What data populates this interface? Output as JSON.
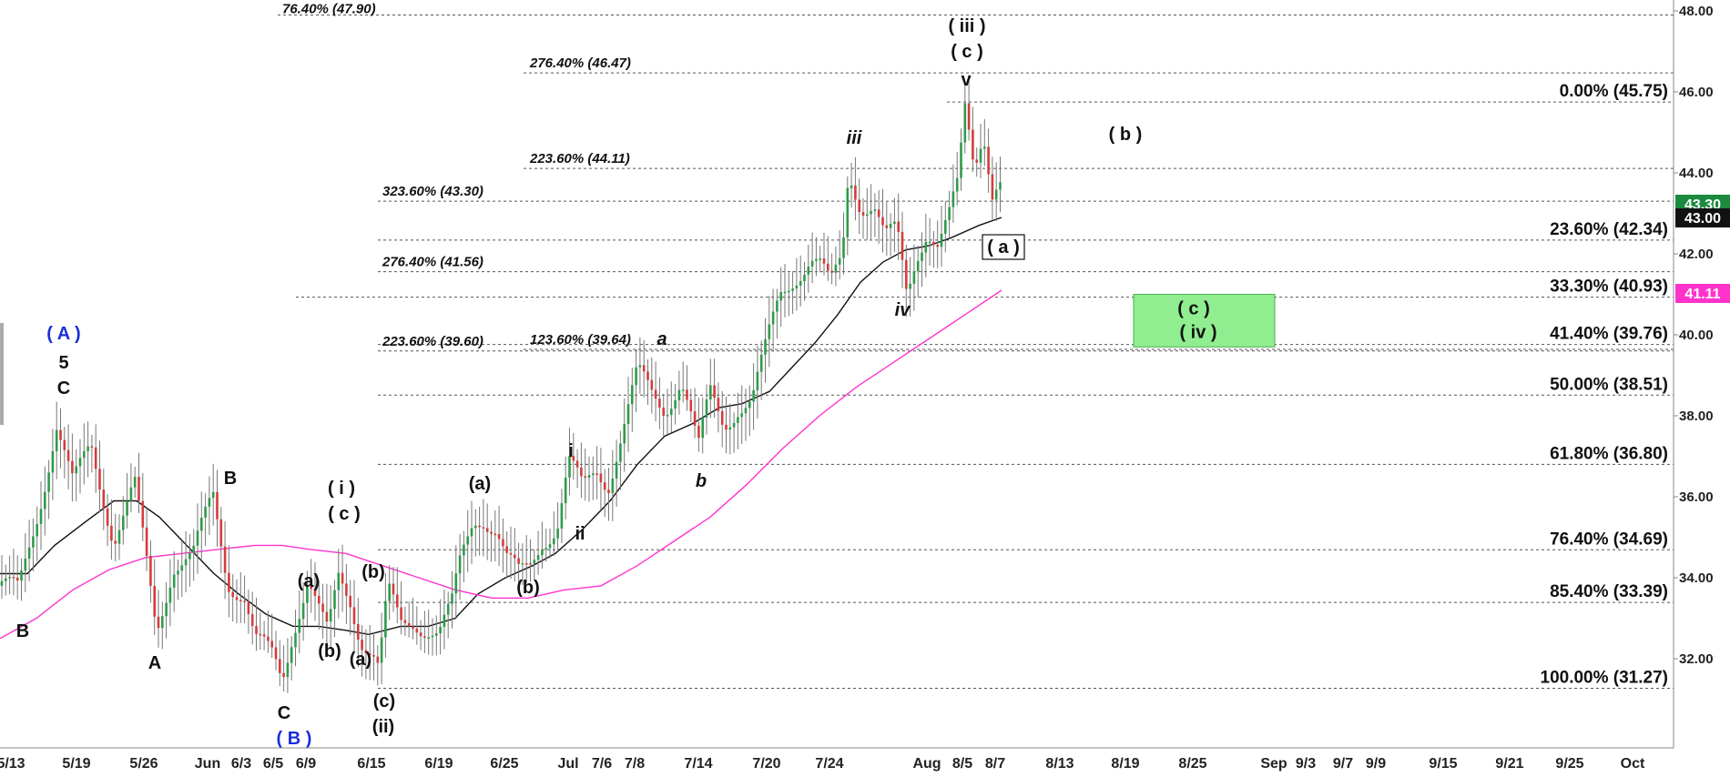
{
  "chart_data": {
    "type": "candlestick",
    "y_ticks": [
      "32.00",
      "34.00",
      "36.00",
      "38.00",
      "40.00",
      "42.00",
      "44.00",
      "46.00",
      "48.00"
    ],
    "ylim": [
      30.0,
      48.3
    ],
    "x_ticks": [
      "5/13",
      "5/19",
      "5/26",
      "Jun",
      "6/3",
      "6/5",
      "6/9",
      "6/15",
      "6/19",
      "6/25",
      "Jul",
      "7/6",
      "7/8",
      "7/14",
      "7/20",
      "7/24",
      "Aug",
      "8/5",
      "8/7",
      "8/13",
      "8/19",
      "8/25",
      "Sep",
      "9/3",
      "9/7",
      "9/9",
      "9/15",
      "9/21",
      "9/25",
      "Oct"
    ],
    "price_badges": [
      {
        "value": "43.30",
        "color": "#1b8a3e"
      },
      {
        "value": "43.00",
        "color": "#111111"
      },
      {
        "value": "41.11",
        "color": "#ff33cc"
      }
    ],
    "fib_right": [
      {
        "label": "0.00% (45.75)",
        "value": 45.75
      },
      {
        "label": "23.60% (42.34)",
        "value": 42.34
      },
      {
        "label": "33.30% (40.93)",
        "value": 40.93
      },
      {
        "label": "41.40% (39.76)",
        "value": 39.76
      },
      {
        "label": "50.00% (38.51)",
        "value": 38.51
      },
      {
        "label": "61.80% (36.80)",
        "value": 36.8
      },
      {
        "label": "76.40% (34.69)",
        "value": 34.69
      },
      {
        "label": "85.40% (33.39)",
        "value": 33.39
      },
      {
        "label": "100.00% (31.27)",
        "value": 31.27
      }
    ],
    "fib_left": [
      {
        "label": "76.40% (47.90)",
        "value": 47.9,
        "blue": true
      },
      {
        "label": "276.40% (46.47)",
        "value": 46.47
      },
      {
        "label": "223.60% (44.11)",
        "value": 44.11
      },
      {
        "label": "323.60% (43.30)",
        "value": 43.3
      },
      {
        "label": "276.40% (41.56)",
        "value": 41.56
      },
      {
        "label": "223.60% (39.60)",
        "value": 39.6
      },
      {
        "label": "123.60% (39.64)",
        "value": 39.64
      }
    ],
    "target_box": {
      "labels": [
        "( c )",
        "( iv )"
      ],
      "low": 39.7,
      "high": 41.0,
      "color": "#90ee90"
    },
    "wave_labels": [
      {
        "text": "( A )",
        "blue": true
      },
      {
        "text": "5"
      },
      {
        "text": "C"
      },
      {
        "text": "B"
      },
      {
        "text": "A"
      },
      {
        "text": "B"
      },
      {
        "text": "C"
      },
      {
        "text": "( B )",
        "blue": true
      },
      {
        "text": "( i )"
      },
      {
        "text": "( c )"
      },
      {
        "text": "(a)"
      },
      {
        "text": "(b)"
      },
      {
        "text": "(b)"
      },
      {
        "text": "(a)"
      },
      {
        "text": "(c)"
      },
      {
        "text": "(ii)"
      },
      {
        "text": "(a)"
      },
      {
        "text": "(b)"
      },
      {
        "text": "i"
      },
      {
        "text": "ii"
      },
      {
        "text": "a",
        "italic": true
      },
      {
        "text": "b",
        "italic": true
      },
      {
        "text": "iii",
        "italic": true
      },
      {
        "text": "iv",
        "italic": true
      },
      {
        "text": "( iii )"
      },
      {
        "text": "( c )"
      },
      {
        "text": "v"
      },
      {
        "text": "( b )"
      },
      {
        "text": "( a )"
      }
    ]
  }
}
